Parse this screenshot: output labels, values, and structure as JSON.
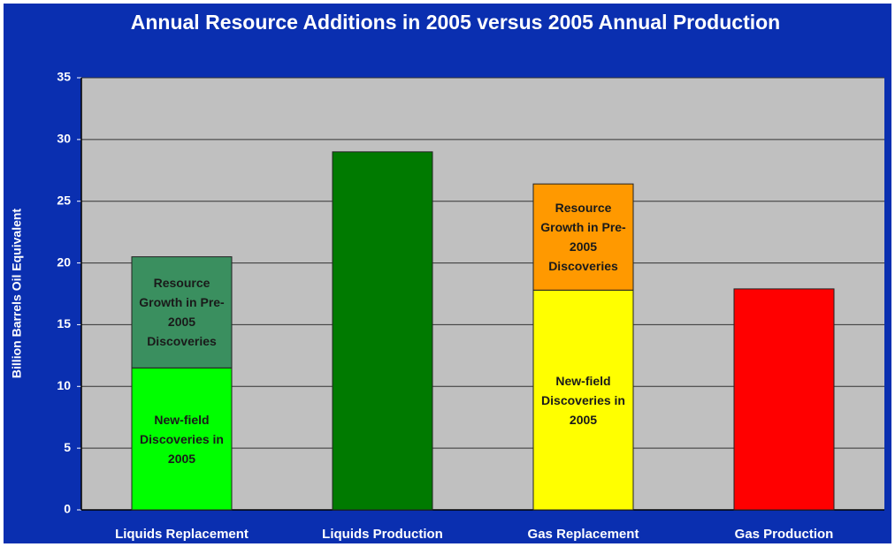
{
  "chart_data": {
    "type": "stacked_bar",
    "title": "Annual Resource Additions in 2005 versus 2005 Annual Production",
    "y_label": "Billion Barrels Oil Equivalent",
    "categories": [
      "Liquids Replacement",
      "Liquids Production",
      "Gas Replacement",
      "Gas Production"
    ],
    "series": [
      {
        "name": "New-field Discoveries in 2005",
        "values": [
          11.5,
          null,
          17.8,
          null
        ],
        "colors": [
          "#00ff00",
          null,
          "#ffff00",
          null
        ]
      },
      {
        "name": "Resource Growth in Pre-2005 Discoveries",
        "values": [
          9.0,
          null,
          8.6,
          null
        ],
        "colors": [
          "#3a8f5f",
          null,
          "#ff9900",
          null
        ]
      },
      {
        "values": [
          null,
          29,
          null,
          17.9
        ],
        "colors": [
          null,
          "#007a00",
          null,
          "#ff0000"
        ]
      }
    ],
    "ylim": [
      0,
      35
    ],
    "yticks": [
      0,
      5,
      10,
      15,
      20,
      25,
      30,
      35
    ],
    "grid": true
  }
}
